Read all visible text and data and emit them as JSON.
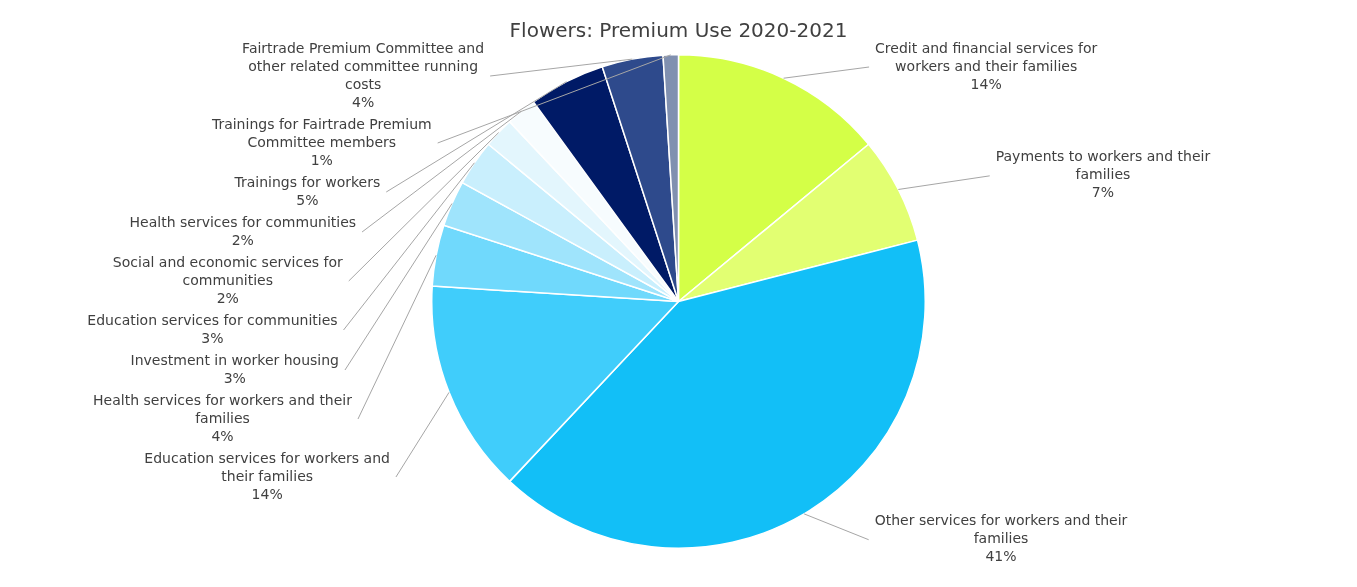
{
  "chart_data": {
    "type": "pie",
    "title": "Flowers: Premium Use 2020-2021",
    "categories": [
      "Credit and financial services for workers and their families",
      "Payments to workers and their families",
      "Other services for workers and their families",
      "Education services for workers and their families",
      "Health services for workers and their families",
      "Investment in worker housing",
      "Education services for communities",
      "Social and economic services for communities",
      "Health services for communities",
      "Trainings for workers",
      "Fairtrade Premium Committee and other related committee running costs",
      "Trainings for Fairtrade Premium Committee members"
    ],
    "values": [
      14,
      7,
      41,
      14,
      4,
      3,
      3,
      2,
      2,
      5,
      4,
      1
    ],
    "value_labels": [
      "14%",
      "7%",
      "41%",
      "14%",
      "4%",
      "3%",
      "3%",
      "2%",
      "2%",
      "5%",
      "4%",
      "1%"
    ],
    "colors": [
      "#d4ff47",
      "#e2ff72",
      "#12bff7",
      "#40cdfb",
      "#70d9fc",
      "#9fe4fc",
      "#c9effd",
      "#e3f6fd",
      "#f7fcfe",
      "#001a66",
      "#2e4a8c",
      "#8090b0"
    ],
    "legend": false
  }
}
